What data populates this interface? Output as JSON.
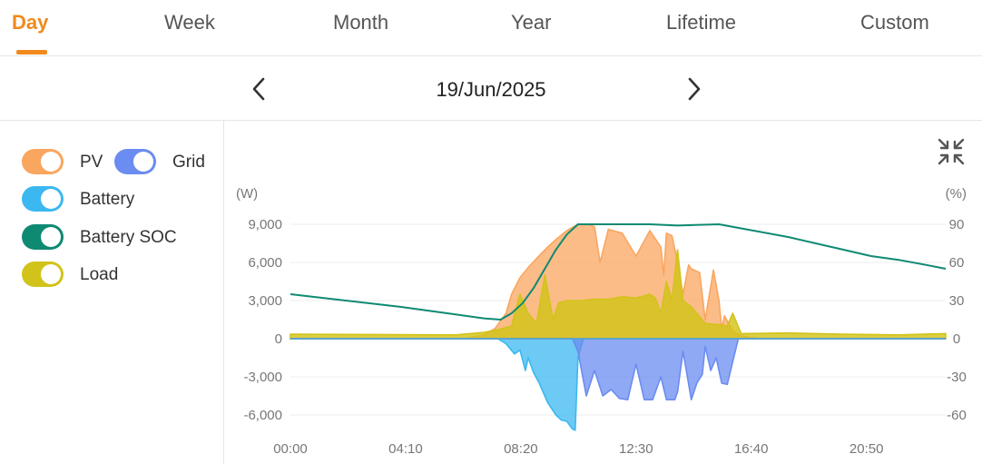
{
  "tabs": [
    {
      "label": "Day",
      "active": true
    },
    {
      "label": "Week"
    },
    {
      "label": "Month"
    },
    {
      "label": "Year"
    },
    {
      "label": "Lifetime"
    },
    {
      "label": "Custom"
    }
  ],
  "date_nav": {
    "date": "19/Jun/2025",
    "prev_icon": "chevron-left-icon",
    "next_icon": "chevron-right-icon"
  },
  "legend": [
    {
      "label": "PV",
      "color": "#f9a660",
      "on": true
    },
    {
      "label": "Grid",
      "color": "#6b8cf0",
      "on": true
    },
    {
      "label": "Battery",
      "color": "#3cb8f0",
      "on": true
    },
    {
      "label": "Battery SOC",
      "color": "#0f8a72",
      "on": true
    },
    {
      "label": "Load",
      "color": "#d2c31a",
      "on": true
    }
  ],
  "collapse_icon": "collapse-arrows-icon",
  "chart_data": {
    "type": "area",
    "y_left_unit": "(W)",
    "y_right_unit": "(%)",
    "x_ticks": [
      "00:00",
      "04:10",
      "08:20",
      "12:30",
      "16:40",
      "20:50"
    ],
    "y_left_ticks": [
      "9,000",
      "6,000",
      "3,000",
      "0",
      "-3,000",
      "-6,000"
    ],
    "y_right_ticks": [
      "90",
      "60",
      "30",
      "0",
      "-30",
      "-60"
    ],
    "ylim_left": [
      -7500,
      9000
    ],
    "ylim_right": [
      -75,
      90
    ],
    "xlim_hours": [
      0,
      23.7
    ],
    "grid": true,
    "series": [
      {
        "name": "PV",
        "color": "#f9a660",
        "x": [
          0,
          6.3,
          7.0,
          7.4,
          7.8,
          8.0,
          8.3,
          8.6,
          8.9,
          9.3,
          9.6,
          10.0,
          10.4,
          10.8,
          11.0,
          11.2,
          11.5,
          12.0,
          12.5,
          13.0,
          13.4,
          13.5,
          13.6,
          13.8,
          14.0,
          14.2,
          14.4,
          14.5,
          14.8,
          15.0,
          15.3,
          15.5,
          15.6,
          15.7,
          16.0,
          16.3,
          17.0,
          24
        ],
        "y": [
          0,
          0,
          300,
          800,
          2000,
          3500,
          4800,
          5600,
          6300,
          7200,
          7800,
          8500,
          9000,
          9000,
          8800,
          6000,
          8600,
          8300,
          6500,
          8500,
          7200,
          5000,
          8300,
          8100,
          6000,
          3500,
          5800,
          5500,
          5200,
          1500,
          5400,
          3000,
          800,
          1800,
          600,
          200,
          0,
          0
        ]
      },
      {
        "name": "Load",
        "color": "#d2c31a",
        "x": [
          0,
          6.0,
          7.0,
          7.5,
          8.0,
          8.3,
          8.6,
          8.9,
          9.2,
          9.5,
          9.7,
          10.0,
          10.5,
          11.0,
          11.5,
          12.0,
          12.5,
          13.0,
          13.2,
          13.4,
          13.6,
          13.8,
          14.0,
          14.2,
          14.5,
          15.0,
          15.5,
          15.8,
          16.0,
          16.3,
          18.0,
          20.0,
          22.0,
          23.7
        ],
        "y": [
          350,
          300,
          500,
          700,
          1000,
          3500,
          2000,
          1200,
          5000,
          1500,
          2800,
          3000,
          3000,
          3100,
          3100,
          3300,
          3200,
          3500,
          3200,
          2000,
          4500,
          3000,
          7000,
          3000,
          2500,
          1200,
          1100,
          1000,
          2000,
          400,
          450,
          350,
          300,
          400
        ]
      },
      {
        "name": "Battery",
        "color": "#3cb8f0",
        "x": [
          0,
          7.5,
          7.8,
          8.1,
          8.3,
          8.5,
          8.6,
          8.8,
          9.0,
          9.3,
          9.6,
          9.8,
          10.0,
          10.2,
          10.3,
          10.4,
          10.6,
          24
        ],
        "y": [
          0,
          0,
          -400,
          -1200,
          -900,
          -2500,
          -1500,
          -2700,
          -3500,
          -5000,
          -6000,
          -6400,
          -6500,
          -7100,
          -7200,
          -1500,
          0,
          0
        ]
      },
      {
        "name": "Grid",
        "color": "#6b8cf0",
        "x": [
          0,
          10.2,
          10.4,
          10.7,
          11.0,
          11.3,
          11.6,
          11.9,
          12.2,
          12.5,
          12.8,
          13.1,
          13.4,
          13.6,
          13.9,
          14.0,
          14.2,
          14.5,
          14.7,
          14.9,
          15.0,
          15.2,
          15.4,
          15.6,
          15.8,
          16.0,
          16.2,
          24
        ],
        "y": [
          0,
          0,
          -1000,
          -4500,
          -2500,
          -4500,
          -4000,
          -4700,
          -4800,
          -2000,
          -4800,
          -4800,
          -3000,
          -4800,
          -4800,
          -4200,
          -1000,
          -4800,
          -3500,
          -2800,
          -600,
          -2500,
          -1500,
          -3500,
          -3600,
          -1800,
          0,
          0
        ]
      },
      {
        "name": "Battery SOC",
        "color": "#0f8a72",
        "axis": "right",
        "x": [
          0,
          2.0,
          4.0,
          6.0,
          7.0,
          7.6,
          8.0,
          8.4,
          8.8,
          9.2,
          9.6,
          10.0,
          10.4,
          11.0,
          13.0,
          14.0,
          15.5,
          16.5,
          18.0,
          19.0,
          20.0,
          21.0,
          22.0,
          23.0,
          23.7
        ],
        "y": [
          35,
          30,
          25,
          19,
          16,
          15,
          20,
          28,
          40,
          55,
          70,
          82,
          90,
          90,
          90,
          89,
          90,
          86,
          80,
          75,
          70,
          65,
          62,
          58,
          55
        ]
      }
    ]
  }
}
